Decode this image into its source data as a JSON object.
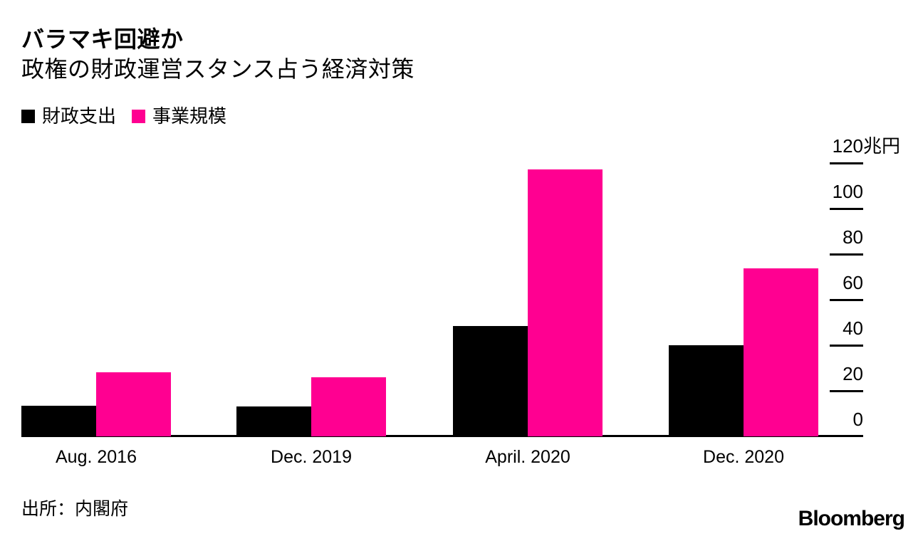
{
  "header": {
    "title": "バラマキ回避か",
    "subtitle": "政権の財政運営スタンス占う経済対策"
  },
  "legend": [
    {
      "label": "財政支出",
      "color": "#000000"
    },
    {
      "label": "事業規模",
      "color": "#ff0091"
    }
  ],
  "chart_data": {
    "type": "bar",
    "title": "バラマキ回避か",
    "subtitle": "政権の財政運営スタンス占う経済対策",
    "categories": [
      "Aug. 2016",
      "Dec. 2019",
      "April. 2020",
      "Dec. 2020"
    ],
    "series": [
      {
        "name": "財政支出",
        "color": "#000000",
        "values": [
          13.5,
          13.2,
          48.4,
          40
        ]
      },
      {
        "name": "事業規模",
        "color": "#ff0091",
        "values": [
          28.1,
          26,
          117.1,
          73.6
        ]
      }
    ],
    "unit_label": "兆円",
    "y_ticks": [
      0,
      20,
      40,
      60,
      80,
      100,
      120
    ],
    "ylim": [
      0,
      120
    ],
    "axis_side": "right",
    "grid": false,
    "legend_position": "top-left"
  },
  "footer": {
    "source": "出所：内閣府",
    "logo": "Bloomberg"
  }
}
